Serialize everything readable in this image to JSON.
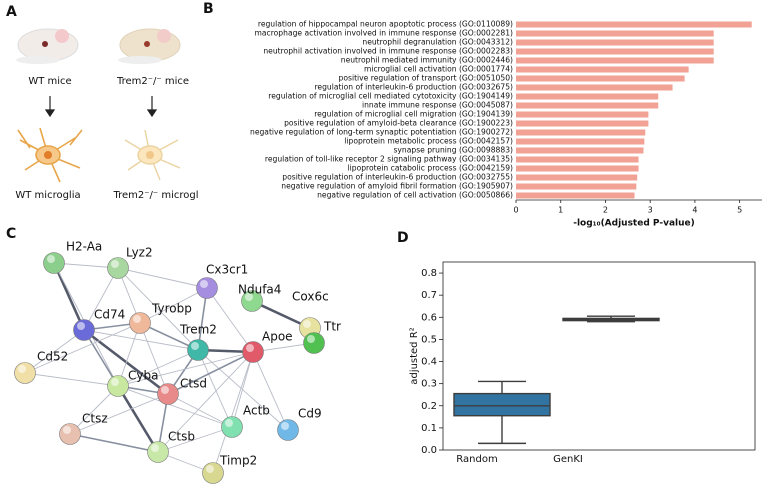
{
  "panel_a": {
    "letter": "A",
    "labels": [
      "WT mice",
      "Trem2⁻/⁻ mice",
      "WT microglia",
      "Trem2⁻/⁻ microgl"
    ]
  },
  "chart_data": [
    {
      "type": "bar",
      "letter": "B",
      "categories": [
        "regulation of hippocampal neuron apoptotic process (GO:0110089)",
        "macrophage activation involved in immune response (GO:0002281)",
        "neutrophil degranulation (GO:0043312)",
        "neutrophil activation involved in immune response (GO:0002283)",
        "neutrophil mediated immunity (GO:0002446)",
        "microglial cell activation (GO:0001774)",
        "positive regulation of transport (GO:0051050)",
        "regulation of interleukin-6 production (GO:0032675)",
        "regulation of microglial cell mediated cytotoxicity (GO:1904149)",
        "innate immune response (GO:0045087)",
        "regulation of microglial cell migration (GO:1904139)",
        "positive regulation of amyloid-beta clearance (GO:1900223)",
        "negative regulation of long-term synaptic potentiation (GO:1900272)",
        "lipoprotein metabolic process (GO:0042157)",
        "synapse pruning (GO:0098883)",
        "regulation of toll-like receptor 2 signaling pathway (GO:0034135)",
        "lipoprotein catabolic process (GO:0042159)",
        "positive regulation of interleukin-6 production (GO:0032755)",
        "negative regulation of amyloid fibril formation (GO:1905907)",
        "negative regulation of cell activation (GO:0050866)"
      ],
      "values": [
        5.27,
        4.42,
        4.42,
        4.42,
        4.42,
        3.86,
        3.77,
        3.5,
        3.18,
        3.18,
        2.96,
        2.96,
        2.89,
        2.87,
        2.85,
        2.74,
        2.74,
        2.71,
        2.69,
        2.65
      ],
      "color": "#f2a195",
      "xlim": [
        0,
        5.5
      ],
      "xticks": [
        0,
        1,
        2,
        3,
        4,
        5
      ],
      "xlabel": "-log₁₀(Adjusted P-value)"
    },
    {
      "type": "box",
      "letter": "D",
      "categories": [
        "Random",
        "GenKI"
      ],
      "color": "#3274a1",
      "boxes": [
        {
          "whislo": 0.03,
          "q1": 0.155,
          "median": 0.2,
          "q3": 0.255,
          "whishi": 0.31
        },
        {
          "whislo": 0.58,
          "q1": 0.585,
          "median": 0.59,
          "q3": 0.595,
          "whishi": 0.605
        }
      ],
      "ylim": [
        0,
        0.85
      ],
      "yticks": [
        {
          "value": 0,
          "label": "0.0"
        },
        0.1,
        0.2,
        0.3,
        0.4,
        0.5,
        0.6,
        0.7,
        0.8
      ],
      "ylabel": "adjusted R²"
    }
  ],
  "network": {
    "letter": "C",
    "nodes": [
      "H2-Aa",
      "Lyz2",
      "Cx3cr1",
      "Ndufa4",
      "Cox6c",
      "Cd74",
      "Tyrobp",
      "Trem2",
      "Apoe",
      "Ttr",
      "Cd52",
      "Cyba",
      "Ctsd",
      "Actb",
      "Cd9",
      "Ctsz",
      "Ctsb",
      "Timp2"
    ]
  }
}
